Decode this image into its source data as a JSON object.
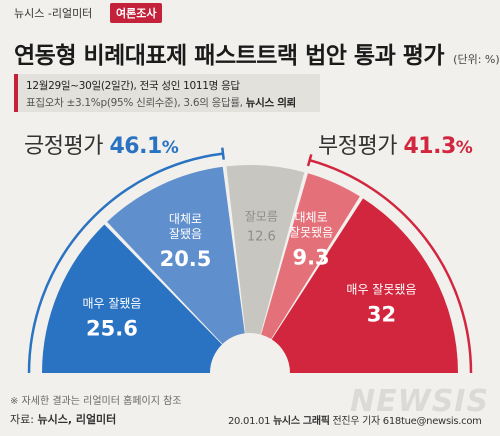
{
  "header": {
    "brand": "뉴시스 -리얼미터",
    "tag": "여론조사"
  },
  "title": {
    "main": "연동형 비례대표제 패스트트랙 법안 통과 평가",
    "unit": "(단위: %)"
  },
  "survey_info": {
    "line1": "12월29일~30일(2일간), 전국 성인 1011명 응답",
    "line2": "표집오차 ±3.1%p(95% 신뢰수준), 3.6의 응답률,",
    "media": "뉴시스 의뢰"
  },
  "summary": {
    "positive": {
      "label": "긍정평가",
      "value": "46.1",
      "unit": "%"
    },
    "negative": {
      "label": "부정평가",
      "value": "41.3",
      "unit": "%"
    }
  },
  "chart_data": {
    "type": "pie",
    "shape": "semicircle-donut",
    "title": "연동형 비례대표제 패스트트랙 법안 통과 평가",
    "unit": "%",
    "slices": [
      {
        "name": "매우 잘됐음",
        "value": 25.6,
        "color": "#2a72c2"
      },
      {
        "name": "대체로 잘됐음",
        "value": 20.5,
        "color": "#5f8fcd"
      },
      {
        "name": "잘모름",
        "value": 12.6,
        "color": "#c8c6c1"
      },
      {
        "name": "대체로 잘못됐음",
        "value": 9.3,
        "color": "#e4707a"
      },
      {
        "name": "매우 잘못됐음",
        "value": 32,
        "color": "#d2263e"
      }
    ],
    "groups": [
      {
        "name": "긍정평가",
        "value": 46.1,
        "color": "#2a72c2"
      },
      {
        "name": "부정평가",
        "value": 41.3,
        "color": "#d2263e"
      }
    ]
  },
  "segment_labels": [
    {
      "lines": [
        "매우 잘됐음"
      ],
      "value": "25.6",
      "text_color": "#ffffff",
      "value_color": "#ffffff"
    },
    {
      "lines": [
        "대체로",
        "잘됐음"
      ],
      "value": "20.5",
      "text_color": "#ffffff",
      "value_color": "#ffffff"
    },
    {
      "lines": [
        "잘모름"
      ],
      "value": "12.6",
      "text_color": "#8f8d88",
      "value_color": "#8f8d88"
    },
    {
      "lines": [
        "대체로",
        "잘못됐음"
      ],
      "value": "9.3",
      "text_color": "#ffffff",
      "value_color": "#ffffff"
    },
    {
      "lines": [
        "매우 잘못됐음"
      ],
      "value": "32",
      "text_color": "#ffffff",
      "value_color": "#ffffff"
    }
  ],
  "footer": {
    "footnote": "※ 자세한 결과는 리얼미터 홈페이지 참조",
    "source_label": "자료:",
    "source_value": "뉴시스, 리얼미터",
    "credit_date": "20.01.01",
    "credit_agency": "뉴시스 그래픽",
    "credit_author": "전진우 기자 618tue@newsis.com",
    "watermark": "NEWSIS"
  }
}
